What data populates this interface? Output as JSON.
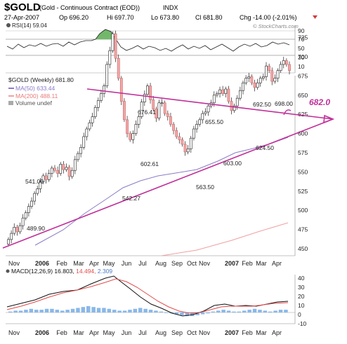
{
  "header": {
    "symbol": "$GOLD",
    "name": "(Gold - Continuous Contract (EOD))",
    "exchange": "INDX",
    "date": "27-Apr-2007",
    "open": "Op 696.20",
    "high": "Hi 697.70",
    "low": "Lo 673.80",
    "close": "Cl 681.80",
    "change": "Chg -14.00 (-2.01%)",
    "watermark": "© StockCharts.com"
  },
  "rsi": {
    "label": "RSI(14) 59.04",
    "ticks": [
      "90",
      "70",
      "50",
      "30",
      "10"
    ]
  },
  "price": {
    "legend_main": "$GOLD (Weekly) 681.80",
    "legend_ma50": "MA(50) 633.44",
    "legend_ma200": "MA(200) 488.11",
    "legend_volume": "Volume undef",
    "ticks": [
      "725",
      "700",
      "675",
      "650",
      "625",
      "600",
      "575",
      "550",
      "525",
      "500",
      "475",
      "450"
    ],
    "annotation_handwritten": "682.0"
  },
  "macd": {
    "label": "MACD(12,26,9) 16.803, 14.494, 2.309",
    "label_main": "MACD(12,26,9) 16.803,",
    "label_signal": " 14.494,",
    "label_hist": " 2.309",
    "ticks": [
      "40",
      "30",
      "20",
      "10",
      "0",
      "-10"
    ]
  },
  "dates": [
    "Nov",
    "2006",
    "Feb",
    "Mar",
    "Apr",
    "May",
    "Jun",
    "Jul",
    "Aug",
    "Sep",
    "Oct",
    "Nov",
    "2007",
    "Feb",
    "Mar",
    "Apr"
  ],
  "colors": {
    "up": "#ffffff",
    "down": "#f4a6a6",
    "ma50": "#8a7bc6",
    "ma200": "#f0a0a0",
    "trend": "#c0309a",
    "rsi_fill": "#72b86a",
    "macd_hist": "#8ab8e8"
  },
  "chart_data": {
    "type": "candlestick",
    "title": "$GOLD (Gold - Continuous Contract (EOD)) INDX",
    "ylim": [
      450,
      740
    ],
    "price_annotations": [
      {
        "label": "489.90",
        "value": 489.9
      },
      {
        "label": "541.00",
        "value": 541.0
      },
      {
        "label": "542.27",
        "value": 542.27
      },
      {
        "label": "602.61",
        "value": 602.61
      },
      {
        "label": "676.41",
        "value": 676.41
      },
      {
        "label": "563.50",
        "value": 563.5
      },
      {
        "label": "655.50",
        "value": 655.5
      },
      {
        "label": "603.00",
        "value": 603.0
      },
      {
        "label": "692.50",
        "value": 692.5
      },
      {
        "label": "624.50",
        "value": 624.5
      },
      {
        "label": "698.00",
        "value": 698.0
      }
    ],
    "closes": [
      462,
      470,
      478,
      472,
      480,
      490,
      497,
      505,
      512,
      522,
      528,
      537,
      545,
      540,
      548,
      555,
      552,
      548,
      560,
      553,
      556,
      544,
      552,
      566,
      574,
      582,
      596,
      606,
      614,
      622,
      634,
      643,
      652,
      662,
      690,
      708,
      730,
      698,
      672,
      642,
      618,
      600,
      592,
      600,
      612,
      622,
      641,
      651,
      662,
      644,
      632,
      620,
      640,
      640,
      626,
      622,
      612,
      604,
      596,
      592,
      586,
      576,
      580,
      594,
      606,
      612,
      618,
      626,
      628,
      636,
      640,
      650,
      652,
      657,
      652,
      658,
      642,
      630,
      636,
      646,
      656,
      666,
      672,
      674,
      666,
      660,
      666,
      672,
      674,
      688,
      682,
      668,
      672,
      682,
      690,
      695,
      690,
      682
    ]
  }
}
